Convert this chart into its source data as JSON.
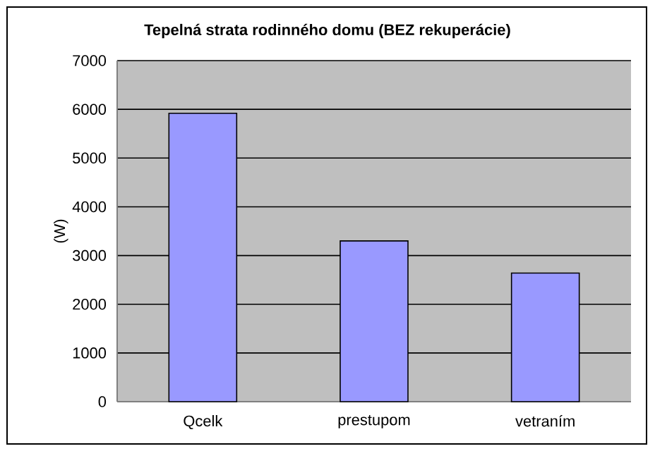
{
  "chart_data": {
    "type": "bar",
    "title": "Tepelná strata rodinného domu (BEZ rekuperácie)",
    "ylabel": "(W)",
    "categories": [
      "Qcelk",
      "prestupom",
      "vetraním"
    ],
    "values": [
      5920,
      3300,
      2640
    ],
    "color": "#9999ff",
    "ylim": [
      0,
      7000
    ],
    "yticks": [
      0,
      1000,
      2000,
      3000,
      4000,
      5000,
      6000,
      7000
    ],
    "grid": "y"
  }
}
